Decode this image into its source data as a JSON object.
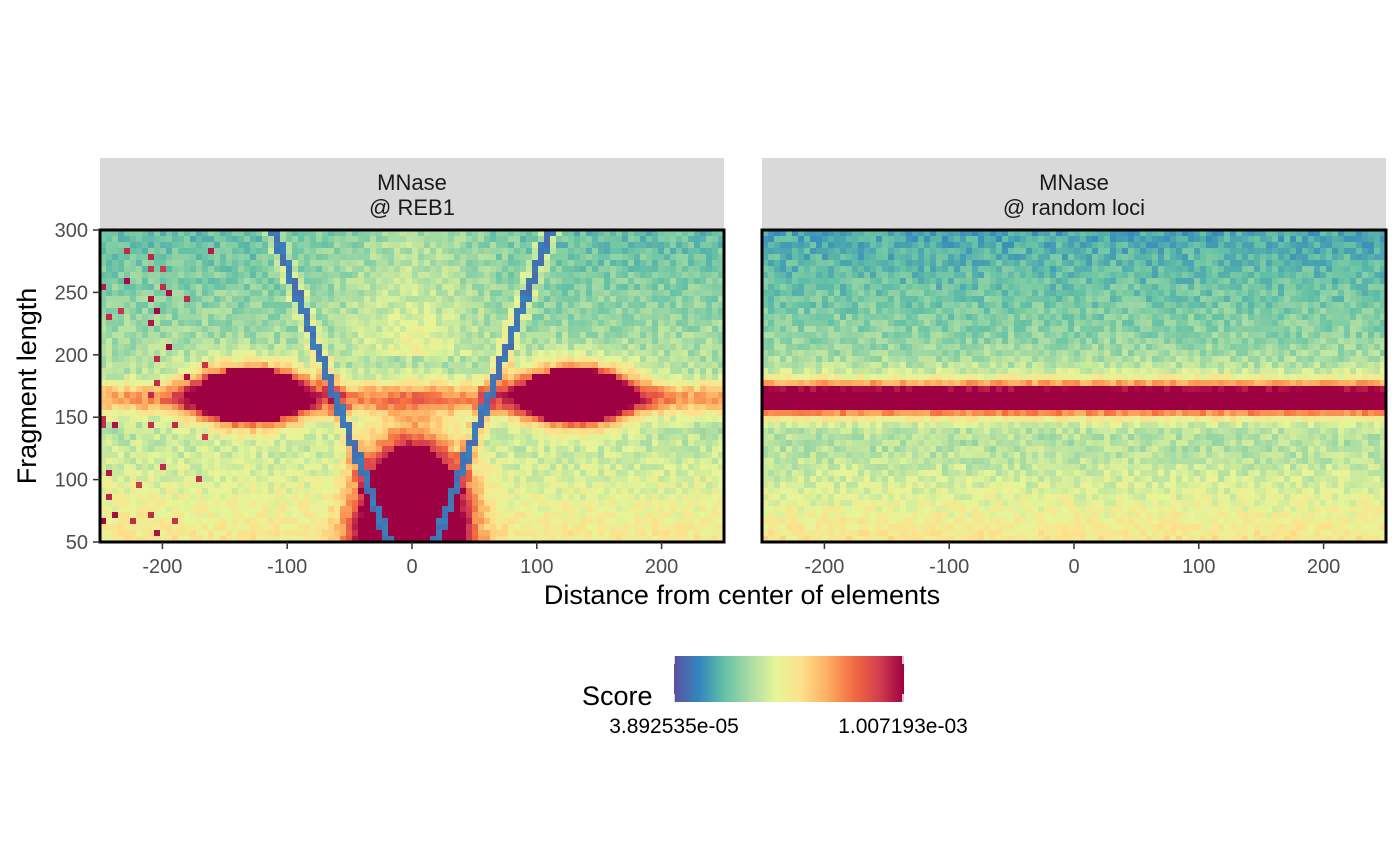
{
  "chart_data": {
    "type": "heatmap",
    "xlabel": "Distance from center of elements",
    "ylabel": "Fragment length",
    "xlim": [
      -250,
      250
    ],
    "ylim": [
      50,
      300
    ],
    "x_ticks": [
      -200,
      -100,
      0,
      100,
      200
    ],
    "x_tick_labels": [
      "-200",
      "-100",
      "0",
      "100",
      "200"
    ],
    "y_ticks": [
      50,
      100,
      150,
      200,
      250,
      300
    ],
    "y_tick_labels": [
      "50",
      "100",
      "150",
      "200",
      "250",
      "300"
    ],
    "panels": [
      {
        "strip_line1": "MNase",
        "strip_line2": "@ REB1",
        "pattern": "reb1",
        "features": {
          "flanking_nucleosome_centers_x": [
            -130,
            130
          ],
          "nucleosome_fragment_length_y": 165,
          "central_blob": {
            "x": 0,
            "y_top": 125
          },
          "diagonal_lines": "V-shaped, from (-70,50)-like bands meeting near x=0 at y=0"
        }
      },
      {
        "strip_line1": "MNase",
        "strip_line2": "@ random loci",
        "pattern": "random",
        "features": {
          "nucleosome_fragment_length_y": 165
        }
      }
    ],
    "legend": {
      "title": "Score",
      "min_label": "3.892535e-05",
      "max_label": "1.007193e-03",
      "placement": "bottom",
      "colormap": [
        "#5E4FA2",
        "#3288BD",
        "#66C2A5",
        "#ABDDA4",
        "#E6F598",
        "#FEE08B",
        "#FDAE61",
        "#F46D43",
        "#D53E4F",
        "#9E0142"
      ]
    }
  }
}
